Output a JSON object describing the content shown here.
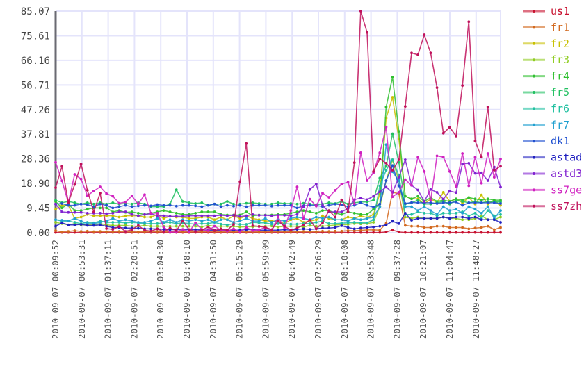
{
  "chart_data": {
    "type": "line",
    "title": "",
    "xlabel": "",
    "ylabel": "",
    "ylim": [
      0,
      85.07
    ],
    "y_ticks": [
      "0.00",
      "9.45",
      "18.90",
      "28.36",
      "37.81",
      "47.26",
      "56.71",
      "66.16",
      "75.61",
      "85.07"
    ],
    "x_ticks": [
      "2010-09-07 00:09:52",
      "2010-09-07 00:53:31",
      "2010-09-07 01:37:11",
      "2010-09-07 02:20:51",
      "2010-09-07 03:04:30",
      "2010-09-07 03:48:10",
      "2010-09-07 04:31:50",
      "2010-09-07 05:15:29",
      "2010-09-07 05:59:09",
      "2010-09-07 06:42:49",
      "2010-09-07 07:26:29",
      "2010-09-07 08:10:08",
      "2010-09-07 08:53:48",
      "2010-09-07 09:37:28",
      "2010-09-07 10:21:07",
      "2010-09-07 11:04:47",
      "2010-09-07 11:48:27"
    ],
    "x_tick_step_minutes": 43.66,
    "point_step_minutes": 10.56,
    "grid": true,
    "legend_position": "right",
    "series": [
      {
        "name": "us1",
        "color": "#c8102e",
        "values": [
          0.1,
          0.1,
          0.1,
          0.1,
          0.1,
          0.1,
          0.1,
          0.1,
          0.1,
          0.1,
          0.1,
          0.1,
          0.1,
          0.1,
          0.1,
          0.1,
          0.1,
          0.1,
          0.1,
          0.1,
          0.1,
          0.1,
          0.1,
          0.1,
          0.1,
          0.1,
          0.1,
          0.1,
          0.1,
          0.1,
          0.1,
          0.1,
          0.1,
          0.1,
          0.1,
          0.1,
          0.1,
          0.1,
          0.1,
          0.1,
          0.1,
          0.1,
          0.1,
          0.1,
          0.1,
          0.1,
          0.1,
          0.1,
          0.1,
          0.1,
          0.1,
          0.1,
          0.3,
          1.0,
          0.3,
          0.1,
          0.1,
          0.1,
          0.1,
          0.1,
          0.1,
          0.1,
          0.1,
          0.1,
          0.1,
          0.1,
          0.1,
          0.1,
          0.1,
          0.1,
          0.1
        ]
      },
      {
        "name": "fr1",
        "color": "#d2691e",
        "values": [
          0.8,
          0.3,
          0.5,
          0.8,
          0.5,
          0.6,
          0.4,
          0.5,
          0.4,
          0.4,
          0.5,
          0.4,
          0.4,
          0.3,
          0.4,
          0.4,
          0.5,
          0.3,
          0.4,
          0.4,
          0.4,
          0.3,
          0.4,
          0.4,
          0.5,
          0.4,
          0.4,
          0.3,
          0.4,
          0.4,
          0.4,
          0.4,
          0.3,
          0.4,
          0.4,
          0.5,
          0.4,
          0.4,
          0.4,
          0.5,
          0.4,
          0.4,
          0.6,
          0.5,
          0.6,
          0.6,
          0.8,
          0.8,
          0.9,
          1.1,
          1.1,
          1.0,
          3.6,
          15.5,
          15.0,
          2.8,
          2.5,
          2.5,
          2.0,
          2.0,
          2.5,
          2.5,
          2.0,
          2.0,
          2.0,
          1.5,
          1.8,
          2.0,
          2.5,
          1.2,
          2.0
        ]
      },
      {
        "name": "fr2",
        "color": "#c8c000",
        "values": [
          9,
          10.5,
          10.5,
          5.5,
          6,
          7,
          6.5,
          6.5,
          6.5,
          6.5,
          6,
          6.5,
          6.5,
          6.5,
          6,
          6,
          7,
          5.5,
          6.3,
          6,
          6,
          5.5,
          5.5,
          6,
          6,
          5,
          6,
          5,
          6.5,
          5.5,
          6.5,
          5.5,
          5,
          4.5,
          4.5,
          4.5,
          3.5,
          5,
          5.5,
          4,
          4.5,
          5,
          6.5,
          5.5,
          5,
          5,
          6,
          5.5,
          6.5,
          5.8,
          7,
          15,
          44,
          52,
          36,
          14,
          13,
          13,
          11,
          13,
          11.5,
          15.5,
          12,
          13,
          11.5,
          13.5,
          11,
          14.5,
          11,
          12.5,
          10.5
        ]
      },
      {
        "name": "fr3",
        "color": "#8fcc20",
        "values": [
          4,
          3.5,
          3,
          3.5,
          3,
          3,
          3,
          3.5,
          3,
          2.8,
          2.8,
          2.8,
          2.5,
          2.5,
          2.8,
          2.5,
          2.5,
          2.5,
          2.5,
          2.5,
          2.5,
          2.5,
          2.5,
          2.3,
          2.8,
          2.5,
          2.5,
          2.5,
          2.5,
          2.2,
          2.3,
          2.3,
          2.5,
          2.5,
          2.6,
          2.2,
          2.5,
          2.5,
          2.5,
          2.2,
          2.8,
          2.5,
          2.5,
          2.7,
          3,
          3,
          3.2,
          3.5,
          3.4,
          3.5,
          4,
          10,
          20,
          28,
          20,
          6,
          5.5,
          6,
          5.5,
          5.5,
          5.5,
          6,
          5.5,
          5.5,
          5,
          5,
          5.5,
          6.5,
          5,
          5,
          6
        ]
      },
      {
        "name": "fr4",
        "color": "#30c030",
        "values": [
          12,
          9.5,
          11,
          8.5,
          8.5,
          9,
          9.5,
          9.5,
          9.5,
          8,
          8.5,
          7.8,
          8,
          7.5,
          7,
          7.5,
          8,
          8.5,
          8,
          7.5,
          7,
          7,
          7.5,
          8,
          8,
          8,
          7,
          6.8,
          6.8,
          6.8,
          8,
          6.5,
          6.8,
          6.8,
          6.8,
          7,
          7,
          7.5,
          8,
          8.5,
          8,
          7.5,
          8.5,
          8.5,
          7.5,
          7,
          8,
          7.5,
          7,
          7,
          9,
          11,
          48.3,
          59.7,
          38.9,
          14,
          13,
          14,
          12,
          13.5,
          12,
          12.5,
          12,
          13,
          12.5,
          13.5,
          13,
          12.5,
          13,
          12.5,
          12.5
        ]
      },
      {
        "name": "fr5",
        "color": "#20c060",
        "values": [
          12.5,
          11.5,
          12,
          11.5,
          11,
          11.5,
          11,
          11.5,
          11,
          11.5,
          11,
          11.2,
          11,
          11.5,
          11,
          10,
          10,
          10,
          11,
          16.5,
          12,
          11.5,
          11.2,
          11.5,
          10.5,
          11,
          11,
          12,
          11,
          11,
          11.3,
          11.5,
          11.2,
          11,
          11,
          11.5,
          11.2,
          11.2,
          11,
          11.3,
          11,
          10.8,
          11,
          11.5,
          11.2,
          12,
          11,
          11.5,
          11.8,
          11.8,
          12.5,
          21,
          25.5,
          38,
          27,
          11,
          11.5,
          12.5,
          11,
          11,
          11.5,
          12,
          11,
          12.5,
          12,
          11.5,
          12,
          11.5,
          12,
          11.8,
          11.8
        ]
      },
      {
        "name": "fr6",
        "color": "#20c0a0",
        "values": [
          5,
          4.5,
          4.5,
          4,
          3.5,
          4,
          3.8,
          4.5,
          4,
          4,
          4,
          3.8,
          4,
          3.8,
          3.5,
          3.5,
          3.5,
          3.8,
          4,
          3.5,
          3.8,
          3.5,
          3.3,
          3.5,
          3.5,
          4,
          3.3,
          3,
          3.5,
          3.2,
          3.2,
          4,
          3.8,
          3.8,
          3.3,
          3.5,
          3.5,
          3.3,
          3.3,
          3.5,
          3.5,
          4,
          4.5,
          3.5,
          3.5,
          3.7,
          3.8,
          4,
          3.8,
          3.8,
          5,
          18,
          24,
          28,
          22,
          7,
          7,
          8,
          7.5,
          7.5,
          6.5,
          7.5,
          7.5,
          7.5,
          8,
          6.5,
          7.5,
          5.5,
          8.5,
          6.5,
          7
        ]
      },
      {
        "name": "fr7",
        "color": "#20a0d0",
        "values": [
          5,
          4.8,
          4.5,
          5.5,
          4.5,
          3.5,
          3.5,
          4,
          4.5,
          5.5,
          4.5,
          5,
          4.5,
          4,
          4,
          4.5,
          5.5,
          4,
          5,
          4,
          5,
          4.5,
          5,
          4.5,
          5,
          4,
          5,
          5,
          4,
          4.5,
          5.5,
          4.5,
          4.5,
          5.5,
          4,
          5,
          4.5,
          5.5,
          6,
          5.5,
          5,
          6,
          5.5,
          6,
          5,
          5,
          4.5,
          5.5,
          5,
          5.5,
          6,
          10,
          33.8,
          23.4,
          20,
          10,
          10,
          8.5,
          10,
          8.5,
          7,
          10,
          8.5,
          9,
          7.5,
          10,
          9,
          7.5,
          10,
          5.5,
          8.5
        ]
      },
      {
        "name": "dk1",
        "color": "#2050d0",
        "values": [
          11,
          11.2,
          10.5,
          10.5,
          11,
          10.8,
          10,
          11,
          10.5,
          9.5,
          10,
          10.5,
          10,
          10.3,
          10.5,
          10.3,
          10.8,
          10.5,
          10.5,
          10.2,
          10.5,
          10.5,
          10.3,
          10,
          10.5,
          11,
          10,
          10.5,
          10.2,
          10.5,
          10,
          10.5,
          10.5,
          10.5,
          10.2,
          10.5,
          10.5,
          10.5,
          9.5,
          10.3,
          10.5,
          10.5,
          10,
          10.5,
          11,
          10.7,
          10,
          10.5,
          11.5,
          10.5,
          9.8,
          11,
          20,
          25.8,
          18,
          11.2,
          11.6,
          11.5,
          11.5,
          11.5,
          11.2,
          11.5,
          11.5,
          11.8,
          10.5,
          11.5,
          11.5,
          11.5,
          11.5,
          11.5,
          11.2
        ]
      },
      {
        "name": "astad",
        "color": "#2020c0",
        "values": [
          2.5,
          3.8,
          3,
          3,
          3.2,
          2.8,
          2.8,
          3,
          2.5,
          2,
          2,
          1.8,
          1.8,
          1.7,
          1.5,
          1.5,
          1.5,
          1.3,
          1.2,
          1.2,
          1.2,
          1.2,
          1.2,
          1.1,
          1,
          1,
          1,
          1,
          1,
          1,
          1.2,
          1.2,
          1,
          1,
          1,
          1,
          1.2,
          1,
          1.3,
          1.5,
          1.3,
          1.5,
          1.8,
          1.8,
          2,
          2.7,
          2,
          1.5,
          1.8,
          2,
          2.2,
          2.5,
          3,
          4.4,
          3.5,
          7.5,
          4.8,
          5.5,
          5.5,
          5.5,
          5.5,
          6,
          5.5,
          6,
          6,
          5.5,
          6,
          5,
          5,
          5,
          4
        ]
      },
      {
        "name": "astd3",
        "color": "#8020d0",
        "values": [
          11,
          8,
          7.8,
          7.8,
          7.8,
          7.5,
          7.5,
          7.5,
          7.3,
          7.5,
          8,
          8,
          7,
          6.5,
          7,
          7.3,
          6.5,
          6.5,
          6.3,
          6.3,
          6.3,
          6.5,
          6.5,
          6.5,
          6.5,
          6.5,
          6.7,
          6.5,
          6.7,
          6.2,
          6.5,
          7,
          6.7,
          6.7,
          6.5,
          6.7,
          6.7,
          6.5,
          7,
          10,
          16.6,
          18.7,
          10.5,
          8,
          8,
          8,
          9.3,
          12.7,
          13.3,
          12.7,
          14,
          15.7,
          17.5,
          15.5,
          21.3,
          28,
          18.2,
          16.4,
          12,
          16.6,
          15.5,
          12.9,
          16,
          15.4,
          26.4,
          26.7,
          22.8,
          23,
          20,
          25.2,
          17.5
        ]
      },
      {
        "name": "ss7ge",
        "color": "#d020c0",
        "values": [
          27,
          19.9,
          11.6,
          22.4,
          20.6,
          14.2,
          16,
          17.6,
          15,
          14,
          11.3,
          11.8,
          14.1,
          11,
          14.6,
          7.5,
          7.5,
          2.2,
          0.2,
          0.3,
          1.3,
          0.3,
          3.8,
          1.3,
          0.8,
          2.5,
          1,
          0.6,
          1.5,
          0.4,
          2,
          0.8,
          1.2,
          2,
          1,
          6,
          2,
          8.5,
          17.6,
          5.5,
          12.9,
          10.2,
          15.2,
          13.6,
          16.3,
          18.7,
          19.4,
          11.1,
          30.7,
          20,
          23,
          30.7,
          40.6,
          13.8,
          15.5,
          20.4,
          18.2,
          29,
          23.5,
          12.4,
          29.5,
          29,
          23.5,
          17.8,
          30.4,
          18,
          29,
          19,
          30.4,
          21.3,
          28.3
        ]
      },
      {
        "name": "ss7zh",
        "color": "#c0105a",
        "values": [
          17.3,
          25.5,
          11.6,
          18.5,
          26.4,
          16.3,
          8,
          15.2,
          1.6,
          1.3,
          2.4,
          0.5,
          1.2,
          2.8,
          1,
          0.6,
          1.5,
          0.4,
          1.8,
          0.8,
          4.5,
          1.2,
          0.5,
          1,
          2.2,
          0.8,
          1.5,
          1,
          3.2,
          19.6,
          34.2,
          2.7,
          2.4,
          2.1,
          1.2,
          4.5,
          2.5,
          1,
          1.8,
          3,
          5,
          1.5,
          3.8,
          8.5,
          6,
          12.6,
          8,
          26.9,
          85.07,
          76.9,
          23.5,
          28.3,
          26.7,
          24,
          28,
          48.5,
          69,
          68.3,
          76,
          69,
          55.7,
          38.2,
          40.5,
          37.1,
          56.5,
          81,
          35.2,
          29,
          48.3,
          24,
          25.5
        ]
      }
    ]
  }
}
